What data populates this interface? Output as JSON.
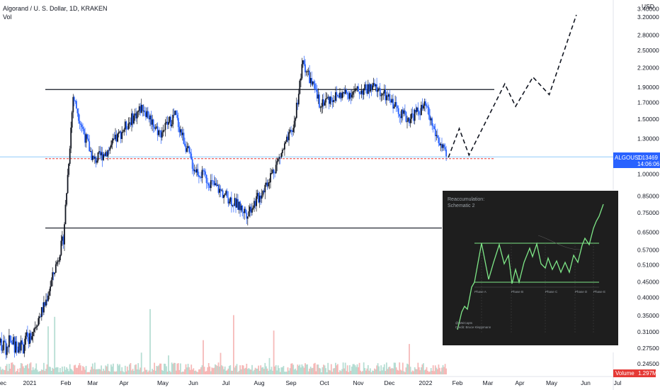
{
  "legend": {
    "title": "Algorand / U. S. Dollar, 1D, KRAKEN",
    "vol_label": "Vol"
  },
  "price_scale": {
    "currency": "USD",
    "ticks": [
      "3.40000",
      "3.20000",
      "2.80000",
      "2.50000",
      "2.20000",
      "1.90000",
      "1.70000",
      "1.50000",
      "1.30000",
      "1.00000",
      "0.85000",
      "0.75000",
      "0.65000",
      "0.57000",
      "0.51000",
      "0.45000",
      "0.40000",
      "0.35000",
      "0.31000",
      "0.27500",
      "0.24500"
    ]
  },
  "time_axis": {
    "labels": [
      "ec",
      "2021",
      "Feb",
      "Mar",
      "Apr",
      "May",
      "Jun",
      "Jul",
      "Aug",
      "Sep",
      "Oct",
      "Nov",
      "Dec",
      "2022",
      "Feb",
      "Mar",
      "Apr",
      "May",
      "Jun",
      "Jul"
    ]
  },
  "last_price_badge": {
    "symbol": "ALGOUSD",
    "price": "1.13469",
    "countdown": "14:06:06"
  },
  "volume_badge": {
    "label": "Volume",
    "value": "1.297M"
  },
  "inset": {
    "title_line1": "Reaccumulation:",
    "title_line2": "Schematic 2",
    "phases": [
      "Phase A",
      "Phase B",
      "Phase C",
      "Phase D",
      "Phase E"
    ],
    "credit_line1": "@WeiCapts",
    "credit_line2": "Credit: Bruce Kleppmann"
  },
  "colors": {
    "up": "#131722",
    "down": "#2962ff",
    "level_line": "#131722",
    "last_price_line": "#e53935",
    "current_line": "#90caf9",
    "badge_bg": "#2962ff",
    "volume_badge_bg": "#e53935",
    "inset_bg": "#1e1e1e",
    "inset_path": "#7ee787"
  },
  "chart_data": {
    "type": "candlestick",
    "symbol": "ALGOUSD",
    "timeframe": "1D",
    "exchange": "KRAKEN",
    "y_scale": "log",
    "ylim": [
      0.245,
      3.4
    ],
    "levels": {
      "range_high": 1.87,
      "range_low": 0.67,
      "last_price": 1.13469,
      "previous_close_marker": 1.12
    },
    "closes_approx": [
      {
        "date": "2021-01-01",
        "close": 0.3
      },
      {
        "date": "2021-01-15",
        "close": 0.38
      },
      {
        "date": "2021-02-01",
        "close": 0.62
      },
      {
        "date": "2021-02-10",
        "close": 1.78
      },
      {
        "date": "2021-02-20",
        "close": 1.35
      },
      {
        "date": "2021-03-01",
        "close": 1.1
      },
      {
        "date": "2021-03-15",
        "close": 1.2
      },
      {
        "date": "2021-04-01",
        "close": 1.45
      },
      {
        "date": "2021-04-15",
        "close": 1.65
      },
      {
        "date": "2021-05-01",
        "close": 1.35
      },
      {
        "date": "2021-05-15",
        "close": 1.55
      },
      {
        "date": "2021-06-01",
        "close": 1.05
      },
      {
        "date": "2021-06-15",
        "close": 0.95
      },
      {
        "date": "2021-07-01",
        "close": 0.85
      },
      {
        "date": "2021-07-20",
        "close": 0.75
      },
      {
        "date": "2021-08-01",
        "close": 0.85
      },
      {
        "date": "2021-08-15",
        "close": 1.05
      },
      {
        "date": "2021-09-01",
        "close": 1.4
      },
      {
        "date": "2021-09-10",
        "close": 2.3
      },
      {
        "date": "2021-09-25",
        "close": 1.7
      },
      {
        "date": "2021-10-15",
        "close": 1.8
      },
      {
        "date": "2021-11-01",
        "close": 1.85
      },
      {
        "date": "2021-11-15",
        "close": 1.9
      },
      {
        "date": "2021-12-01",
        "close": 1.7
      },
      {
        "date": "2021-12-15",
        "close": 1.5
      },
      {
        "date": "2022-01-01",
        "close": 1.65
      },
      {
        "date": "2022-01-10",
        "close": 1.35
      },
      {
        "date": "2022-01-20",
        "close": 1.13
      }
    ],
    "projection": [
      {
        "date": "2022-01-22",
        "value": 1.13
      },
      {
        "date": "2022-02-01",
        "value": 1.4
      },
      {
        "date": "2022-02-10",
        "value": 1.15
      },
      {
        "date": "2022-03-15",
        "value": 1.95
      },
      {
        "date": "2022-03-25",
        "value": 1.65
      },
      {
        "date": "2022-04-10",
        "value": 2.05
      },
      {
        "date": "2022-04-25",
        "value": 1.8
      },
      {
        "date": "2022-05-20",
        "value": 3.25
      }
    ],
    "volume_unit": "M",
    "last_volume": 1.297
  }
}
